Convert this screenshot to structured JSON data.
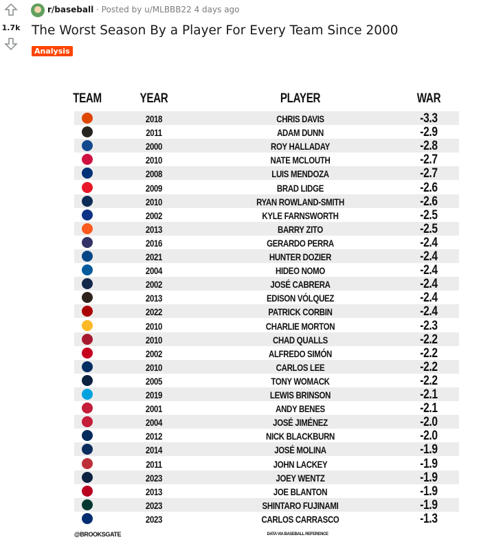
{
  "post": {
    "votes": "1.7k",
    "subreddit": "r/baseball",
    "separator": "·",
    "posted_by": "Posted by u/MLBBB22",
    "time": "4 days ago",
    "title": "The Worst Season By a Player For Every Team Since 2000",
    "flair": "Analysis"
  },
  "table": {
    "headers": [
      "TEAM",
      "YEAR",
      "PLAYER",
      "WAR"
    ],
    "rows": [
      [
        "2018",
        "CHRIS DAVIS",
        "-3.3"
      ],
      [
        "2011",
        "ADAM DUNN",
        "-2.9"
      ],
      [
        "2000",
        "ROY HALLADAY",
        "-2.8"
      ],
      [
        "2010",
        "NATE MCLOUTH",
        "-2.7"
      ],
      [
        "2008",
        "LUIS MENDOZA",
        "-2.7"
      ],
      [
        "2009",
        "BRAD LIDGE",
        "-2.6"
      ],
      [
        "2010",
        "RYAN ROWLAND-SMITH",
        "-2.6"
      ],
      [
        "2002",
        "KYLE FARNSWORTH",
        "-2.5"
      ],
      [
        "2013",
        "BARRY ZITO",
        "-2.5"
      ],
      [
        "2016",
        "GERARDO PERRA",
        "-2.4"
      ],
      [
        "2021",
        "HUNTER DOZIER",
        "-2.4"
      ],
      [
        "2004",
        "HIDEO NOMO",
        "-2.4"
      ],
      [
        "2002",
        "JOSÉ CABRERA",
        "-2.4"
      ],
      [
        "2013",
        "EDISON VÓLQUEZ",
        "-2.4"
      ],
      [
        "2022",
        "PATRICK CORBIN",
        "-2.4"
      ],
      [
        "2010",
        "CHARLIE MORTON",
        "-2.3"
      ],
      [
        "2010",
        "CHAD QUALLS",
        "-2.2"
      ],
      [
        "2002",
        "ALFREDO SIMÓN",
        "-2.2"
      ],
      [
        "2010",
        "CARLOS LEE",
        "-2.2"
      ],
      [
        "2005",
        "TONY WOMACK",
        "-2.2"
      ],
      [
        "2019",
        "LEWIS BRINSON",
        "-2.1"
      ],
      [
        "2001",
        "ANDY BENES",
        "-2.1"
      ],
      [
        "2004",
        "JOSÉ JIMÉNEZ",
        "-2.0"
      ],
      [
        "2012",
        "NICK BLACKBURN",
        "-2.0"
      ],
      [
        "2014",
        "JOSÉ MOLINA",
        "-1.9"
      ],
      [
        "2011",
        "JOHN LACKEY",
        "-1.9"
      ],
      [
        "2023",
        "JOEY WENTZ",
        "-1.9"
      ],
      [
        "2013",
        "JOE BLANTON",
        "-1.9"
      ],
      [
        "2023",
        "SHINTARO FUJINAMI",
        "-1.9"
      ],
      [
        "2023",
        "CARLOS CARRASCO",
        "-1.3"
      ]
    ],
    "credit": "@BROOKSGATE",
    "source": "DATA VIA BASEBALL REFERENCE"
  }
}
